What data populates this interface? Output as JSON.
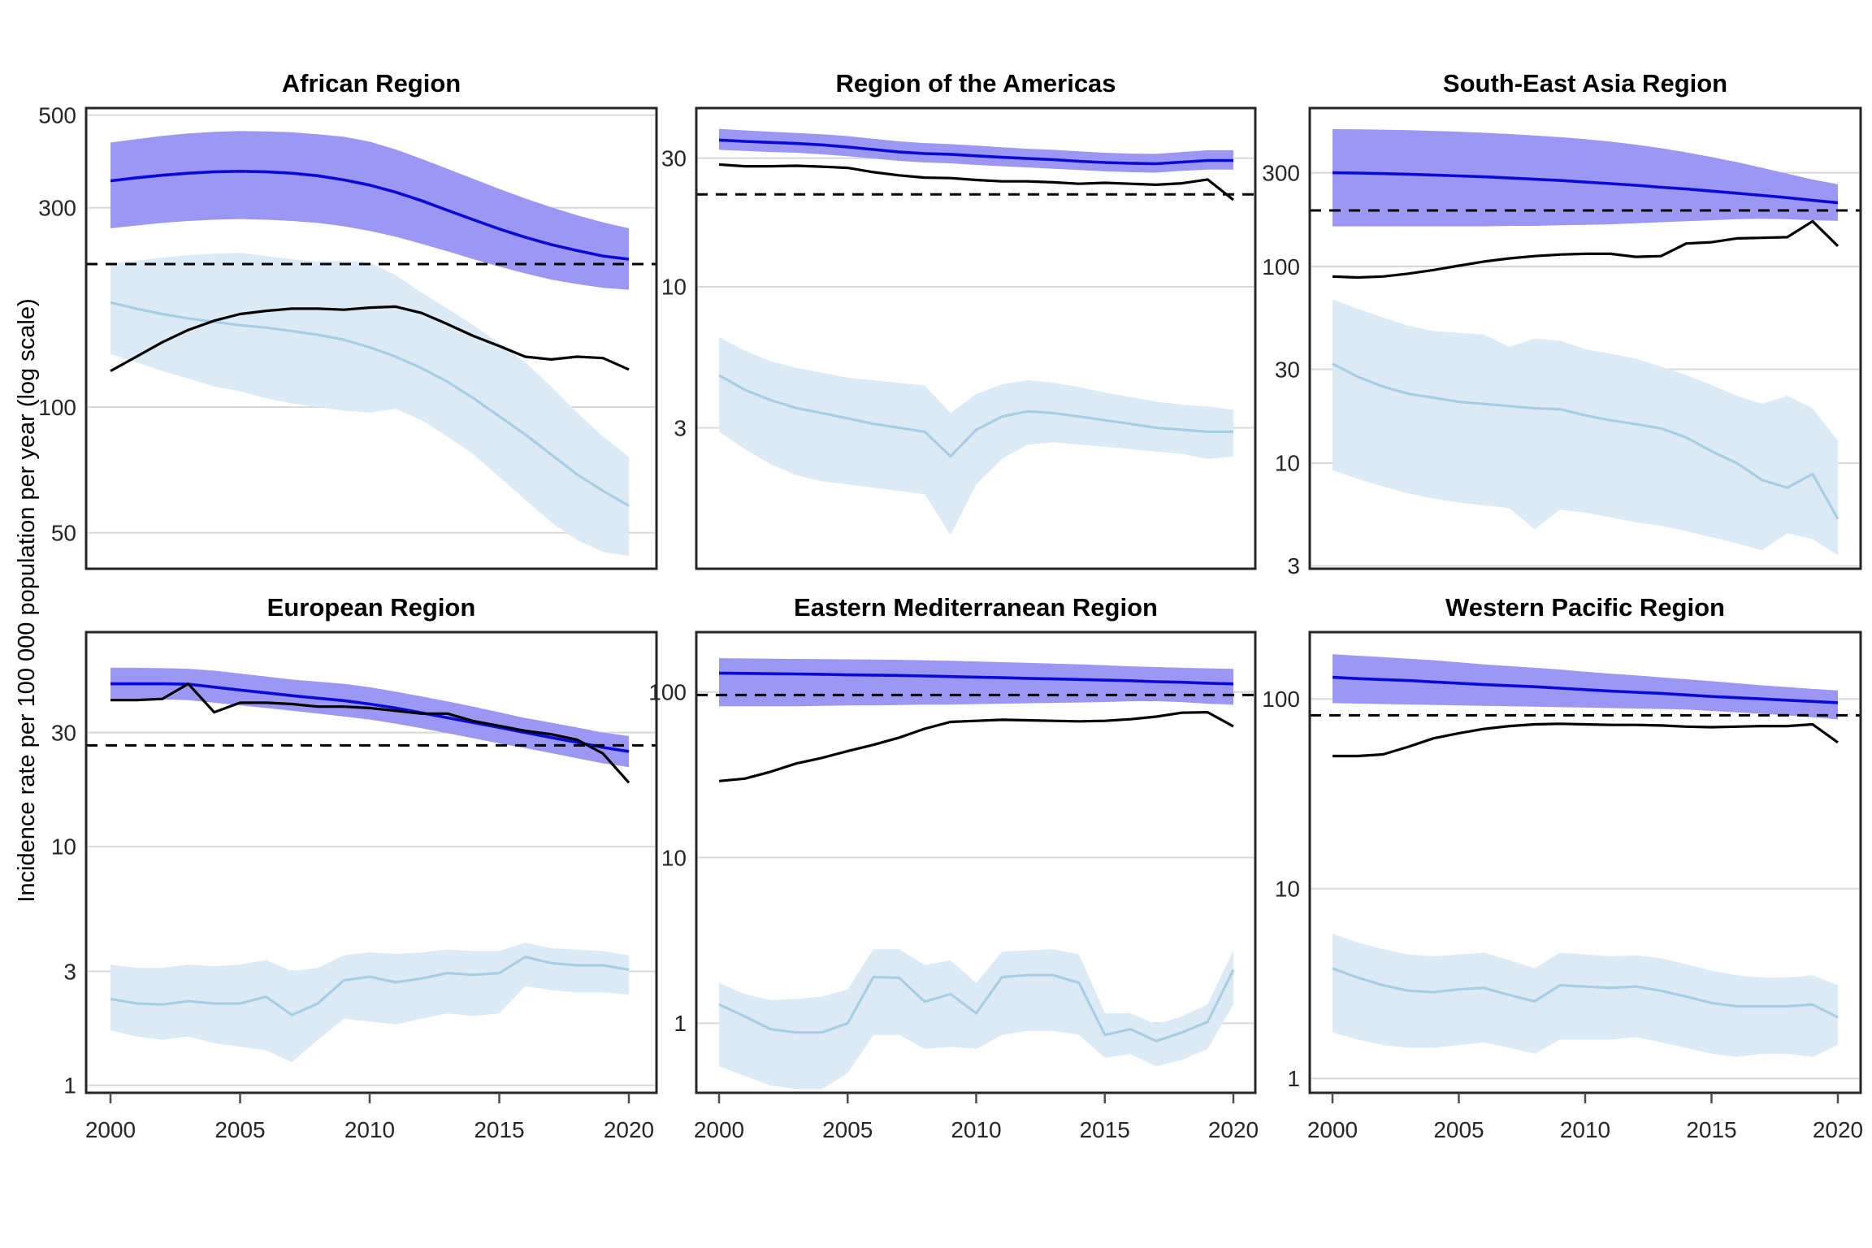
{
  "figure": {
    "y_axis_label": "Incidence rate per 100 000 population per year (log scale)"
  },
  "colors": {
    "estimate_line": "#0A0AD7",
    "estimate_band": "#9B97F2",
    "secondary_line": "#A8CEE3",
    "secondary_band": "#DCEAF6",
    "black_line": "#000000",
    "dashed_line": "#000000",
    "gridline": "#D8D8D8",
    "panel_border": "#262626",
    "tick_text": "#262626",
    "background": "#FFFFFF"
  },
  "x_years": [
    2000,
    2001,
    2002,
    2003,
    2004,
    2005,
    2006,
    2007,
    2008,
    2009,
    2010,
    2011,
    2012,
    2013,
    2014,
    2015,
    2016,
    2017,
    2018,
    2019,
    2020
  ],
  "chart_data": [
    {
      "type": "line",
      "title": "African Region",
      "ylim": [
        41,
        520
      ],
      "y_ticks": [
        500,
        300,
        100,
        50
      ],
      "x_ticks": [
        2000,
        2005,
        2010,
        2015,
        2020
      ],
      "dashed_value": 220,
      "grid": "horizontal-only",
      "legend": "none",
      "series": {
        "blue_line": [
          348,
          354,
          359,
          363,
          366,
          367,
          366,
          363,
          358,
          350,
          340,
          327,
          312,
          296,
          281,
          267,
          255,
          245,
          237,
          230,
          226
        ],
        "blue_upper": [
          430,
          438,
          446,
          452,
          456,
          458,
          457,
          455,
          450,
          444,
          432,
          414,
          393,
          372,
          352,
          333,
          316,
          301,
          288,
          277,
          268
        ],
        "blue_lower": [
          268,
          272,
          276,
          279,
          281,
          282,
          281,
          279,
          276,
          271,
          264,
          256,
          246,
          236,
          226,
          217,
          209,
          202,
          197,
          193,
          191
        ],
        "black_line": [
          122,
          132,
          143,
          153,
          161,
          167,
          170,
          172,
          172,
          171,
          173,
          174,
          168,
          158,
          148,
          140,
          132,
          130,
          132,
          131,
          123
        ],
        "light_line": [
          178,
          172,
          167,
          163,
          160,
          157,
          155,
          152,
          149,
          145,
          139,
          132,
          124,
          115,
          105,
          95,
          86,
          77,
          69,
          63,
          58
        ],
        "light_upper": [
          221,
          224,
          228,
          231,
          233,
          234,
          230,
          226,
          223,
          224,
          222,
          207,
          188,
          172,
          157,
          142,
          128,
          112,
          97,
          85,
          76
        ],
        "light_lower": [
          134,
          128,
          122,
          117,
          112,
          109,
          105,
          102,
          100,
          98,
          97,
          99,
          93,
          85,
          77,
          68,
          60,
          53,
          48,
          45,
          44
        ]
      }
    },
    {
      "type": "line",
      "title": "Region of the Americas",
      "ylim": [
        0.9,
        46
      ],
      "y_ticks": [
        30,
        10,
        3
      ],
      "x_ticks": [
        2000,
        2005,
        2010,
        2015,
        2020
      ],
      "dashed_value": 22,
      "grid": "horizontal-only",
      "legend": "none",
      "series": {
        "blue_line": [
          35,
          34.6,
          34.3,
          34,
          33.6,
          33,
          32.3,
          31.6,
          31.2,
          31,
          30.6,
          30.2,
          29.9,
          29.6,
          29.2,
          28.9,
          28.7,
          28.6,
          29,
          29.4,
          29.4
        ],
        "blue_upper": [
          38.5,
          38,
          37.6,
          37.2,
          36.8,
          36.2,
          35.4,
          34.6,
          34.1,
          33.8,
          33.4,
          32.9,
          32.5,
          32.2,
          31.8,
          31.4,
          31.2,
          31.1,
          31.6,
          32.1,
          32.1
        ],
        "blue_lower": [
          32.2,
          31.9,
          31.6,
          31.4,
          31,
          30.5,
          29.9,
          29.3,
          28.9,
          28.7,
          28.3,
          28,
          27.7,
          27.4,
          27.1,
          26.8,
          26.6,
          26.5,
          26.9,
          27.2,
          27.2
        ],
        "black_line": [
          28.4,
          28,
          28,
          28.1,
          27.9,
          27.6,
          26.6,
          25.9,
          25.4,
          25.3,
          24.9,
          24.6,
          24.6,
          24.4,
          24.1,
          24.3,
          24.1,
          23.9,
          24.2,
          25,
          21
        ],
        "light_line": [
          4.7,
          4.15,
          3.8,
          3.55,
          3.4,
          3.25,
          3.1,
          3.0,
          2.9,
          2.35,
          2.95,
          3.3,
          3.45,
          3.4,
          3.3,
          3.2,
          3.1,
          3.0,
          2.95,
          2.9,
          2.9
        ],
        "light_upper": [
          6.5,
          5.8,
          5.3,
          5.0,
          4.8,
          4.6,
          4.5,
          4.4,
          4.3,
          3.4,
          4.0,
          4.35,
          4.5,
          4.4,
          4.25,
          4.05,
          3.9,
          3.75,
          3.65,
          3.6,
          3.5
        ],
        "light_lower": [
          2.9,
          2.5,
          2.2,
          2.0,
          1.9,
          1.85,
          1.8,
          1.75,
          1.7,
          1.2,
          1.85,
          2.3,
          2.6,
          2.65,
          2.6,
          2.55,
          2.5,
          2.45,
          2.4,
          2.3,
          2.35
        ]
      }
    },
    {
      "type": "line",
      "title": "South-East Asia Region",
      "ylim": [
        2.9,
        640
      ],
      "y_ticks": [
        300,
        100,
        30,
        10,
        3
      ],
      "x_ticks": [
        2000,
        2005,
        2010,
        2015,
        2020
      ],
      "dashed_value": 193,
      "grid": "horizontal-only",
      "legend": "none",
      "series": {
        "blue_line": [
          300,
          299,
          297,
          295,
          292,
          289,
          286,
          282,
          278,
          274,
          269,
          264,
          259,
          253,
          248,
          242,
          236,
          230,
          224,
          217,
          211
        ],
        "blue_upper": [
          500,
          499,
          497,
          494,
          490,
          485,
          479,
          472,
          464,
          455,
          445,
          432,
          417,
          400,
          381,
          361,
          340,
          318,
          297,
          277,
          262
        ],
        "blue_lower": [
          160,
          160,
          160,
          160,
          160,
          160,
          160,
          161,
          161,
          162,
          163,
          164,
          166,
          168,
          170,
          172,
          174,
          175,
          174,
          172,
          171
        ],
        "black_line": [
          89,
          88,
          89,
          92,
          96,
          101,
          106,
          110,
          113,
          115,
          116,
          116,
          112,
          113,
          131,
          133,
          139,
          140,
          141,
          170,
          127
        ],
        "light_line": [
          32,
          27.5,
          24.5,
          22.5,
          21.5,
          20.5,
          20,
          19.5,
          19,
          18.8,
          17.5,
          16.5,
          15.8,
          15,
          13.5,
          11.5,
          10,
          8.2,
          7.5,
          8.8,
          5.2
        ],
        "light_upper": [
          68,
          61,
          55,
          50,
          47,
          46,
          45,
          39,
          43,
          42,
          38,
          36,
          34,
          31,
          28,
          25,
          22,
          20,
          22,
          19,
          13
        ],
        "light_lower": [
          9.2,
          8.3,
          7.6,
          7.0,
          6.6,
          6.3,
          6.1,
          5.9,
          4.6,
          5.8,
          5.6,
          5.3,
          5.0,
          4.8,
          4.5,
          4.2,
          3.9,
          3.6,
          4.4,
          4.1,
          3.4
        ]
      }
    },
    {
      "type": "line",
      "title": "European Region",
      "ylim": [
        0.93,
        79
      ],
      "y_ticks": [
        30,
        10,
        3,
        1
      ],
      "x_ticks": [
        2000,
        2005,
        2010,
        2015,
        2020
      ],
      "dashed_value": 26.5,
      "grid": "horizontal-only",
      "legend": "none",
      "series": {
        "blue_line": [
          48,
          48,
          48,
          47.8,
          46.5,
          45.2,
          44,
          42.8,
          41.8,
          40.8,
          39.5,
          38,
          36.3,
          34.6,
          33,
          31.5,
          30,
          28.6,
          27.3,
          26,
          25
        ],
        "blue_upper": [
          56,
          56,
          55.8,
          55.5,
          54.5,
          53,
          51.5,
          50,
          49,
          48,
          46.5,
          44.5,
          42.5,
          40.5,
          38.5,
          36.5,
          34.5,
          33,
          31.5,
          30,
          29
        ],
        "blue_lower": [
          41.5,
          41.5,
          41.3,
          41,
          40,
          39,
          38,
          37,
          36,
          35,
          34,
          32.7,
          31.3,
          29.8,
          28.4,
          27,
          25.8,
          24.6,
          23.4,
          22.3,
          21.5
        ],
        "black_line": [
          41,
          41,
          41.5,
          48,
          36.5,
          40,
          40,
          39.5,
          38.5,
          38.5,
          38,
          37,
          36,
          36,
          33.5,
          32,
          30.5,
          29.5,
          28,
          24.5,
          18.5
        ],
        "light_line": [
          2.3,
          2.2,
          2.18,
          2.25,
          2.2,
          2.2,
          2.35,
          1.97,
          2.2,
          2.75,
          2.85,
          2.7,
          2.8,
          2.95,
          2.9,
          2.95,
          3.45,
          3.25,
          3.18,
          3.18,
          3.05
        ],
        "light_upper": [
          3.2,
          3.1,
          3.1,
          3.2,
          3.15,
          3.2,
          3.35,
          3.0,
          3.1,
          3.5,
          3.6,
          3.55,
          3.6,
          3.7,
          3.65,
          3.65,
          3.95,
          3.75,
          3.7,
          3.65,
          3.5
        ],
        "light_lower": [
          1.7,
          1.6,
          1.55,
          1.6,
          1.5,
          1.45,
          1.4,
          1.25,
          1.55,
          1.9,
          1.85,
          1.8,
          1.9,
          2.0,
          1.95,
          2.0,
          2.6,
          2.5,
          2.45,
          2.45,
          2.4
        ]
      }
    },
    {
      "type": "line",
      "title": "Eastern Mediterranean Region",
      "ylim": [
        0.38,
        230
      ],
      "y_ticks": [
        100,
        10,
        1
      ],
      "x_ticks": [
        2000,
        2005,
        2010,
        2015,
        2020
      ],
      "dashed_value": 96,
      "grid": "horizontal-only",
      "legend": "none",
      "series": {
        "blue_line": [
          130,
          129.5,
          129,
          128.5,
          128,
          127,
          126.5,
          126,
          125,
          124,
          123,
          122,
          121,
          120,
          119,
          118,
          117,
          115.5,
          114.5,
          113,
          112
        ],
        "blue_upper": [
          160,
          159.5,
          159,
          158.5,
          158,
          157.5,
          157,
          156.5,
          155.5,
          154.5,
          153,
          151.5,
          150,
          148.5,
          147,
          145,
          143,
          141.5,
          140,
          139,
          138
        ],
        "blue_lower": [
          82,
          82,
          82,
          82,
          82.5,
          83,
          83,
          83.5,
          84,
          84,
          84.5,
          85,
          85.5,
          86,
          86.5,
          87,
          88,
          88,
          87,
          85,
          84
        ],
        "black_line": [
          29,
          30,
          33,
          37,
          40,
          44,
          48,
          53,
          60,
          66,
          67,
          68,
          67.5,
          67,
          66.5,
          67,
          68.5,
          71,
          75,
          75.5,
          62
        ],
        "light_line": [
          1.3,
          1.1,
          0.92,
          0.88,
          0.88,
          1.0,
          1.9,
          1.88,
          1.35,
          1.5,
          1.15,
          1.9,
          1.95,
          1.95,
          1.75,
          0.85,
          0.92,
          0.78,
          0.88,
          1.02,
          2.1
        ],
        "light_upper": [
          1.75,
          1.5,
          1.38,
          1.4,
          1.45,
          1.6,
          2.8,
          2.8,
          2.25,
          2.4,
          1.75,
          2.7,
          2.75,
          2.8,
          2.6,
          1.15,
          1.15,
          0.98,
          1.1,
          1.3,
          2.75
        ],
        "light_lower": [
          0.55,
          0.48,
          0.42,
          0.4,
          0.4,
          0.5,
          0.85,
          0.85,
          0.7,
          0.72,
          0.7,
          0.85,
          0.9,
          0.9,
          0.85,
          0.62,
          0.65,
          0.55,
          0.6,
          0.7,
          1.3
        ]
      }
    },
    {
      "type": "line",
      "title": "Western Pacific Region",
      "ylim": [
        0.84,
        225
      ],
      "y_ticks": [
        100,
        10,
        1
      ],
      "x_ticks": [
        2000,
        2005,
        2010,
        2015,
        2020
      ],
      "dashed_value": 82,
      "grid": "horizontal-only",
      "legend": "none",
      "series": {
        "blue_line": [
          130,
          128,
          126.5,
          125,
          123,
          121,
          119,
          117.5,
          116,
          114,
          112,
          110,
          108.5,
          107,
          105,
          103,
          101.5,
          100,
          98.5,
          97,
          95.5
        ],
        "blue_upper": [
          172,
          169,
          166,
          163,
          160,
          156,
          152,
          149,
          146,
          143,
          139,
          136,
          133,
          130,
          127,
          124,
          121,
          118,
          115.5,
          113,
          111
        ],
        "blue_lower": [
          95,
          94.5,
          94,
          93.5,
          93,
          92.5,
          92,
          91.5,
          91,
          90.5,
          90,
          89.5,
          89,
          88.5,
          88,
          86.5,
          85,
          83.5,
          82,
          80,
          78
        ],
        "black_line": [
          50,
          50,
          51,
          56,
          62,
          66,
          69.5,
          72,
          73.5,
          74,
          73.5,
          73,
          73,
          72.5,
          71.5,
          71,
          71.5,
          72,
          72,
          73.5,
          59
        ],
        "light_line": [
          3.8,
          3.4,
          3.1,
          2.9,
          2.85,
          2.95,
          3.0,
          2.75,
          2.55,
          3.1,
          3.05,
          3.0,
          3.05,
          2.9,
          2.7,
          2.5,
          2.4,
          2.4,
          2.4,
          2.45,
          2.1
        ],
        "light_upper": [
          5.8,
          5.2,
          4.8,
          4.5,
          4.4,
          4.5,
          4.6,
          4.2,
          3.8,
          4.6,
          4.5,
          4.4,
          4.45,
          4.3,
          4.0,
          3.7,
          3.5,
          3.4,
          3.4,
          3.5,
          3.1
        ],
        "light_lower": [
          1.75,
          1.6,
          1.5,
          1.45,
          1.45,
          1.5,
          1.55,
          1.45,
          1.35,
          1.6,
          1.6,
          1.6,
          1.65,
          1.55,
          1.45,
          1.35,
          1.3,
          1.35,
          1.35,
          1.3,
          1.5
        ]
      }
    }
  ]
}
